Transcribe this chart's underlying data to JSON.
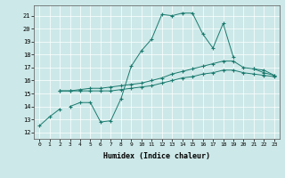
{
  "xlabel": "Humidex (Indice chaleur)",
  "xlim": [
    -0.5,
    23.5
  ],
  "ylim": [
    11.5,
    21.8
  ],
  "yticks": [
    12,
    13,
    14,
    15,
    16,
    17,
    18,
    19,
    20,
    21
  ],
  "xticks": [
    0,
    1,
    2,
    3,
    4,
    5,
    6,
    7,
    8,
    9,
    10,
    11,
    12,
    13,
    14,
    15,
    16,
    17,
    18,
    19,
    20,
    21,
    22,
    23
  ],
  "background_color": "#cde8e8",
  "grid_color": "#ffffff",
  "line_color": "#1a7a6e",
  "lines": [
    {
      "segments": [
        {
          "x": [
            0,
            1,
            2
          ],
          "y": [
            12.5,
            13.2,
            13.8
          ]
        },
        {
          "x": [
            3,
            4,
            5,
            6,
            7,
            8,
            9,
            10,
            11,
            12,
            13,
            14,
            15,
            16,
            17,
            18,
            19
          ],
          "y": [
            14.0,
            14.3,
            14.3,
            12.8,
            12.9,
            14.6,
            17.1,
            18.3,
            19.2,
            21.1,
            21.0,
            21.2,
            21.2,
            19.6,
            18.5,
            20.4,
            17.8
          ]
        },
        {
          "x": [
            21,
            22,
            23
          ],
          "y": [
            16.9,
            16.6,
            16.4
          ]
        }
      ]
    },
    {
      "segments": [
        {
          "x": [
            2,
            3,
            4,
            5,
            6,
            7,
            8,
            9,
            10,
            11,
            12,
            13,
            14,
            15,
            16,
            17,
            18,
            19,
            20,
            21,
            22,
            23
          ],
          "y": [
            15.2,
            15.2,
            15.3,
            15.4,
            15.4,
            15.5,
            15.6,
            15.7,
            15.8,
            16.0,
            16.2,
            16.5,
            16.7,
            16.9,
            17.1,
            17.3,
            17.5,
            17.5,
            17.0,
            16.9,
            16.8,
            16.4
          ]
        }
      ]
    },
    {
      "segments": [
        {
          "x": [
            2,
            3,
            4,
            5,
            6,
            7,
            8,
            9,
            10,
            11,
            12,
            13,
            14,
            15,
            16,
            17,
            18,
            19,
            20,
            21,
            22,
            23
          ],
          "y": [
            15.2,
            15.2,
            15.2,
            15.2,
            15.2,
            15.2,
            15.3,
            15.4,
            15.5,
            15.6,
            15.8,
            16.0,
            16.2,
            16.3,
            16.5,
            16.6,
            16.8,
            16.8,
            16.6,
            16.5,
            16.4,
            16.3
          ]
        }
      ]
    }
  ]
}
